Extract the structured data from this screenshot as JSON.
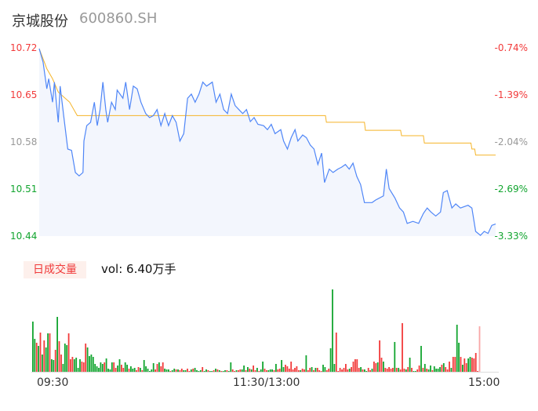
{
  "header": {
    "name": "京城股份",
    "code": "600860.SH"
  },
  "colors": {
    "up": "#f23a3a",
    "down": "#12a52f",
    "neutral": "#999999",
    "price_line": "#4f86f7",
    "avg_line": "#f5b428",
    "area": "#f3f6fd"
  },
  "price_axis": {
    "labels": [
      "10.72",
      "10.65",
      "10.58",
      "10.51",
      "10.44"
    ],
    "range": [
      10.44,
      10.72
    ]
  },
  "pct_axis": {
    "labels": [
      "-0.74%",
      "-1.39%",
      "-2.04%",
      "-2.69%",
      "-3.33%"
    ]
  },
  "volume": {
    "tab_label": "日成交量",
    "readout": "vol: 6.40万手"
  },
  "time_axis": {
    "labels": [
      "09:30",
      "11:30/13:00",
      "15:00"
    ]
  },
  "chart_data": {
    "type": "line",
    "x_unit": "minutes since 09:30 (trading)",
    "price": [
      [
        0,
        10.72
      ],
      [
        2,
        10.7
      ],
      [
        4,
        10.66
      ],
      [
        5,
        10.675
      ],
      [
        7,
        10.64
      ],
      [
        8,
        10.67
      ],
      [
        9,
        10.64
      ],
      [
        10,
        10.61
      ],
      [
        11,
        10.664
      ],
      [
        13,
        10.617
      ],
      [
        15,
        10.57
      ],
      [
        17,
        10.568
      ],
      [
        19,
        10.535
      ],
      [
        21,
        10.53
      ],
      [
        23,
        10.535
      ],
      [
        23.5,
        10.582
      ],
      [
        25,
        10.605
      ],
      [
        27,
        10.61
      ],
      [
        29,
        10.64
      ],
      [
        30.5,
        10.605
      ],
      [
        32,
        10.629
      ],
      [
        33.5,
        10.67
      ],
      [
        35,
        10.629
      ],
      [
        36,
        10.61
      ],
      [
        38,
        10.64
      ],
      [
        40,
        10.629
      ],
      [
        41,
        10.658
      ],
      [
        44,
        10.646
      ],
      [
        45.5,
        10.67
      ],
      [
        47.5,
        10.629
      ],
      [
        49.5,
        10.664
      ],
      [
        51.5,
        10.66
      ],
      [
        53.5,
        10.64
      ],
      [
        56,
        10.623
      ],
      [
        58,
        10.617
      ],
      [
        60,
        10.62
      ],
      [
        62,
        10.629
      ],
      [
        64,
        10.605
      ],
      [
        66,
        10.623
      ],
      [
        68,
        10.605
      ],
      [
        70,
        10.62
      ],
      [
        72,
        10.61
      ],
      [
        74,
        10.582
      ],
      [
        76,
        10.593
      ],
      [
        78,
        10.646
      ],
      [
        80,
        10.652
      ],
      [
        82,
        10.64
      ],
      [
        84,
        10.652
      ],
      [
        86,
        10.67
      ],
      [
        88,
        10.664
      ],
      [
        91,
        10.67
      ],
      [
        93,
        10.64
      ],
      [
        95,
        10.652
      ],
      [
        97,
        10.629
      ],
      [
        99,
        10.623
      ],
      [
        101,
        10.652
      ],
      [
        103,
        10.635
      ],
      [
        105,
        10.629
      ],
      [
        107,
        10.623
      ],
      [
        109,
        10.629
      ],
      [
        111,
        10.611
      ],
      [
        113,
        10.617
      ],
      [
        115,
        10.607
      ],
      [
        118,
        10.605
      ],
      [
        120,
        10.599
      ],
      [
        122,
        10.607
      ],
      [
        124,
        10.593
      ],
      [
        127,
        10.599
      ],
      [
        128.5,
        10.582
      ],
      [
        130.5,
        10.57
      ],
      [
        132.5,
        10.587
      ],
      [
        134.5,
        10.599
      ],
      [
        136,
        10.582
      ],
      [
        138.5,
        10.591
      ],
      [
        140.5,
        10.587
      ],
      [
        142.5,
        10.576
      ],
      [
        144.5,
        10.57
      ],
      [
        146.5,
        10.547
      ],
      [
        148.5,
        10.564
      ],
      [
        150,
        10.52
      ],
      [
        152.5,
        10.54
      ],
      [
        154.5,
        10.535
      ],
      [
        157,
        10.54
      ],
      [
        159,
        10.543
      ],
      [
        161,
        10.547
      ],
      [
        163,
        10.54
      ],
      [
        165,
        10.549
      ],
      [
        167,
        10.529
      ],
      [
        169,
        10.517
      ],
      [
        171,
        10.49
      ],
      [
        175,
        10.49
      ],
      [
        177,
        10.494
      ],
      [
        181,
        10.5
      ],
      [
        182.5,
        10.54
      ],
      [
        184,
        10.511
      ],
      [
        187,
        10.497
      ],
      [
        189.5,
        10.482
      ],
      [
        191.5,
        10.476
      ],
      [
        193.5,
        10.459
      ],
      [
        196.5,
        10.462
      ],
      [
        199.5,
        10.459
      ],
      [
        202,
        10.474
      ],
      [
        204,
        10.482
      ],
      [
        206,
        10.476
      ],
      [
        208.5,
        10.47
      ],
      [
        211,
        10.476
      ],
      [
        212.5,
        10.505
      ],
      [
        214.5,
        10.508
      ],
      [
        217,
        10.482
      ],
      [
        219,
        10.488
      ],
      [
        221.5,
        10.482
      ],
      [
        225.5,
        10.486
      ],
      [
        227.5,
        10.482
      ],
      [
        229.5,
        10.447
      ],
      [
        232,
        10.441
      ],
      [
        234,
        10.447
      ],
      [
        236,
        10.444
      ],
      [
        238,
        10.456
      ],
      [
        240,
        10.458
      ]
    ],
    "avg_price": [
      [
        0,
        10.72
      ],
      [
        4,
        10.69
      ],
      [
        7,
        10.675
      ],
      [
        10,
        10.655
      ],
      [
        16,
        10.64
      ],
      [
        20,
        10.62
      ],
      [
        150.5,
        10.62
      ],
      [
        151,
        10.61
      ],
      [
        171,
        10.61
      ],
      [
        171.5,
        10.598
      ],
      [
        190,
        10.598
      ],
      [
        190.5,
        10.59
      ],
      [
        202,
        10.59
      ],
      [
        202.5,
        10.579
      ],
      [
        227,
        10.579
      ],
      [
        227.5,
        10.57
      ],
      [
        229,
        10.57
      ],
      [
        229.5,
        10.561
      ],
      [
        240,
        10.561
      ]
    ],
    "volumes": [
      -64,
      -42,
      37,
      -33,
      50,
      -22,
      40,
      -31,
      -49,
      49,
      -16,
      -15,
      28,
      -70,
      39,
      22,
      -10,
      -36,
      -34,
      49,
      16,
      19,
      -16,
      -18,
      -5,
      -16,
      13,
      12,
      36,
      -31,
      -20,
      -22,
      -19,
      -10,
      -7,
      -5,
      -12,
      -10,
      12,
      -17,
      -4,
      -3,
      -12,
      12,
      5,
      -8,
      -16,
      9,
      5,
      -12,
      -9,
      4,
      -7,
      -4,
      -5,
      2,
      6,
      -5,
      2,
      -15,
      -7,
      -4,
      -1,
      -3,
      -11,
      3,
      10,
      -12,
      7,
      12,
      -4,
      -3,
      -3,
      1,
      -2,
      -4,
      3,
      -3,
      2,
      4,
      -2,
      -2,
      4,
      1,
      -3,
      4,
      -5,
      -2,
      -1,
      -2,
      6,
      -1,
      -3,
      2,
      -1,
      -1,
      2,
      -4,
      3,
      -2,
      1,
      -1,
      -2,
      2,
      -1,
      -12,
      3,
      1,
      -2,
      2,
      3,
      -3,
      -8,
      2,
      -6,
      4,
      -3,
      8,
      2,
      -5,
      1,
      -3,
      -13,
      4,
      2,
      -2,
      -3,
      -3,
      2,
      -10,
      3,
      4,
      -15,
      -6,
      9,
      7,
      4,
      13,
      3,
      5,
      7,
      2,
      -2,
      4,
      3,
      -21,
      2,
      5,
      -6,
      2,
      -5,
      5,
      2,
      1,
      -9,
      -6,
      2,
      4,
      -30,
      -105,
      -10,
      50,
      1,
      5,
      3,
      5,
      10,
      3,
      -4,
      6,
      13,
      16,
      16,
      5,
      -6,
      3,
      -3,
      -1,
      5,
      2,
      -4,
      13,
      11,
      -12,
      40,
      18,
      -13,
      5,
      4,
      6,
      4,
      5,
      -38,
      5,
      -5,
      3,
      62,
      4,
      -3,
      6,
      -18,
      5,
      -1,
      -1,
      3,
      8,
      -33,
      5,
      -10,
      4,
      -3,
      -8,
      2,
      -7,
      -4,
      -4,
      -6,
      9,
      -11,
      6,
      3,
      13,
      -5,
      19,
      19,
      -60,
      -37,
      19,
      -9,
      17,
      11,
      -17,
      -19,
      18,
      17,
      24,
      1,
      58
    ]
  }
}
